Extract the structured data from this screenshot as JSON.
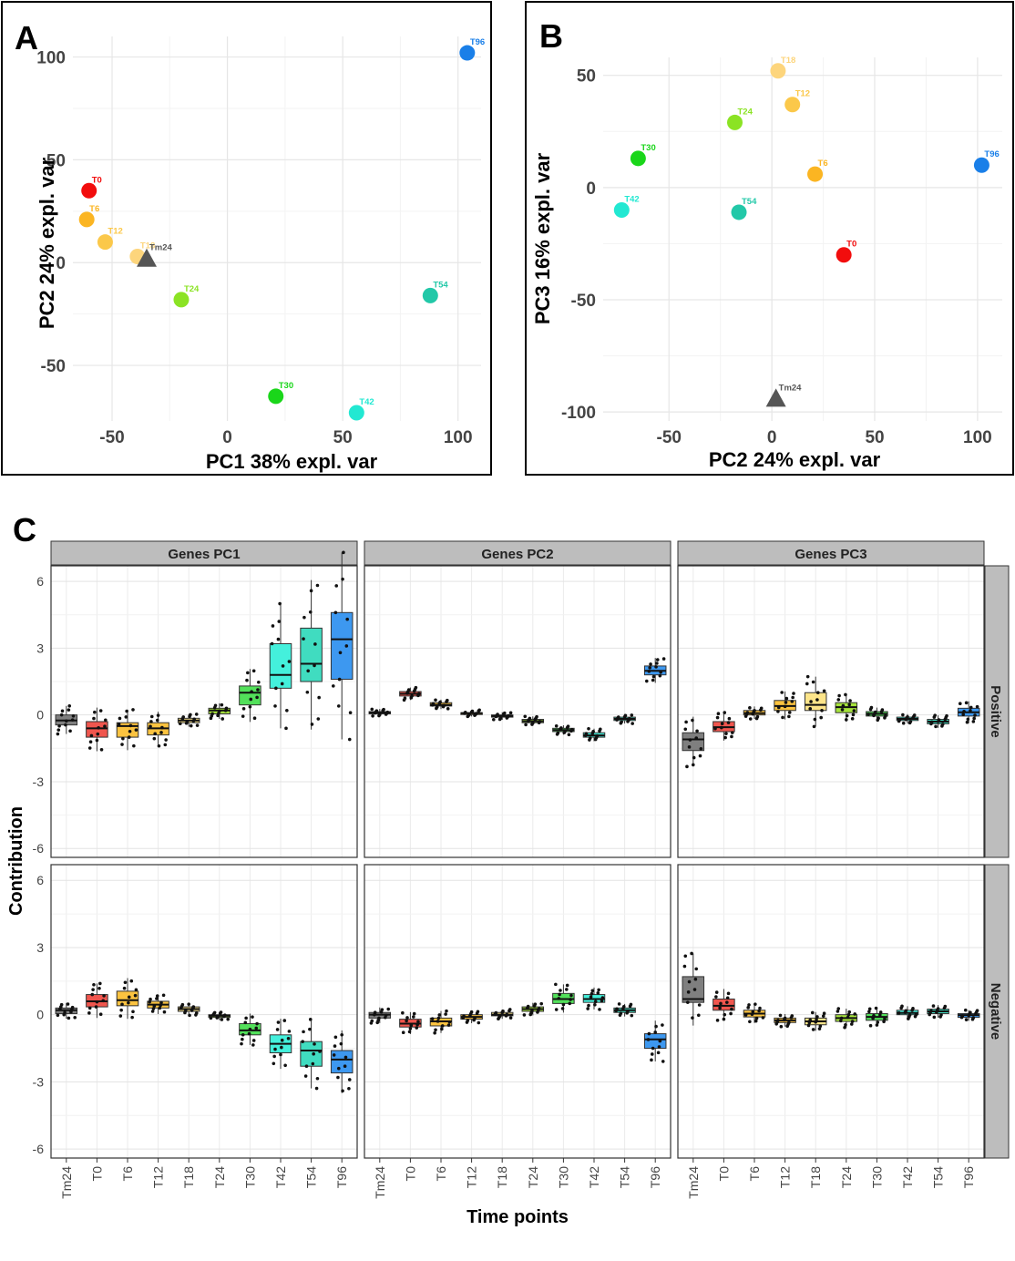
{
  "panels": {
    "a_letter": "A",
    "b_letter": "B",
    "c_letter": "C"
  },
  "chart_data": [
    {
      "id": "A",
      "type": "scatter",
      "xlabel": "PC1 38% expl. var",
      "ylabel": "PC2 24% expl. var",
      "xlim": [
        -67,
        110
      ],
      "ylim": [
        -77,
        110
      ],
      "xticks": [
        -50,
        0,
        50,
        100
      ],
      "yticks": [
        -50,
        0,
        50,
        100
      ],
      "grid": true,
      "points": [
        {
          "label": "T0",
          "x": -60,
          "y": 35,
          "color": "#f20d0d",
          "shape": "circle"
        },
        {
          "label": "T6",
          "x": -61,
          "y": 21,
          "color": "#fbb522",
          "shape": "circle"
        },
        {
          "label": "T12",
          "x": -53,
          "y": 10,
          "color": "#fbc84a",
          "shape": "circle"
        },
        {
          "label": "T18",
          "x": -39,
          "y": 3,
          "color": "#fdd57c",
          "shape": "circle"
        },
        {
          "label": "Tm24",
          "x": -35,
          "y": 2,
          "color": "#555555",
          "shape": "triangle"
        },
        {
          "label": "T24",
          "x": -20,
          "y": -18,
          "color": "#8be324",
          "shape": "circle"
        },
        {
          "label": "T30",
          "x": 21,
          "y": -65,
          "color": "#1ad61a",
          "shape": "circle"
        },
        {
          "label": "T42",
          "x": 56,
          "y": -73,
          "color": "#22e8d2",
          "shape": "circle"
        },
        {
          "label": "T54",
          "x": 88,
          "y": -16,
          "color": "#22c8a8",
          "shape": "circle"
        },
        {
          "label": "T96",
          "x": 104,
          "y": 102,
          "color": "#1a7fe8",
          "shape": "circle"
        }
      ]
    },
    {
      "id": "B",
      "type": "scatter",
      "xlabel": "PC2 24% expl. var",
      "ylabel": "PC3 16% expl. var",
      "xlim": [
        -82,
        112
      ],
      "ylim": [
        -104,
        58
      ],
      "xticks": [
        -50,
        0,
        50,
        100
      ],
      "yticks": [
        -100,
        -50,
        0,
        50
      ],
      "grid": true,
      "points": [
        {
          "label": "T18",
          "x": 3,
          "y": 52,
          "color": "#fdd57c",
          "shape": "circle"
        },
        {
          "label": "T12",
          "x": 10,
          "y": 37,
          "color": "#fbc84a",
          "shape": "circle"
        },
        {
          "label": "T24",
          "x": -18,
          "y": 29,
          "color": "#8be324",
          "shape": "circle"
        },
        {
          "label": "T30",
          "x": -65,
          "y": 13,
          "color": "#1ad61a",
          "shape": "circle"
        },
        {
          "label": "T6",
          "x": 21,
          "y": 6,
          "color": "#fbb522",
          "shape": "circle"
        },
        {
          "label": "T96",
          "x": 102,
          "y": 10,
          "color": "#1a7fe8",
          "shape": "circle"
        },
        {
          "label": "T42",
          "x": -73,
          "y": -10,
          "color": "#22e8d2",
          "shape": "circle"
        },
        {
          "label": "T54",
          "x": -16,
          "y": -11,
          "color": "#22c8a8",
          "shape": "circle"
        },
        {
          "label": "T0",
          "x": 35,
          "y": -30,
          "color": "#f20d0d",
          "shape": "circle"
        },
        {
          "label": "Tm24",
          "x": 2,
          "y": -94,
          "color": "#555555",
          "shape": "triangle"
        }
      ]
    },
    {
      "id": "C",
      "type": "box",
      "xlabel": "Time points",
      "ylabel": "Contribution",
      "ylim": [
        -6.4,
        6.7
      ],
      "yticks": [
        -6,
        -3,
        0,
        3,
        6
      ],
      "categories": [
        "Tm24",
        "T0",
        "T6",
        "T12",
        "T18",
        "T24",
        "T30",
        "T42",
        "T54",
        "T96"
      ],
      "colors": [
        "#7f7f7f",
        "#f0564e",
        "#fbc340",
        "#fbc340",
        "#fde58a",
        "#a6e33c",
        "#52e05a",
        "#44f0dc",
        "#40dcc0",
        "#3d98f0"
      ],
      "columns": [
        "Genes PC1",
        "Genes PC2",
        "Genes PC3"
      ],
      "rows": [
        "Positive",
        "Negative"
      ],
      "facets": [
        {
          "column": "Genes PC1",
          "row": "Positive",
          "boxes": [
            [
              -0.45,
              -0.25,
              0.0
            ],
            [
              -1.0,
              -0.6,
              -0.3
            ],
            [
              -1.0,
              -0.5,
              -0.35
            ],
            [
              -0.9,
              -0.6,
              -0.35
            ],
            [
              -0.35,
              -0.25,
              -0.15
            ],
            [
              0.05,
              0.2,
              0.3
            ],
            [
              0.45,
              1.0,
              1.3
            ],
            [
              1.2,
              1.8,
              3.2
            ],
            [
              1.5,
              2.3,
              3.9
            ],
            [
              1.6,
              3.4,
              4.6
            ]
          ]
        },
        {
          "column": "Genes PC1",
          "row": "Negative",
          "boxes": [
            [
              0.05,
              0.2,
              0.3
            ],
            [
              0.35,
              0.6,
              0.9
            ],
            [
              0.4,
              0.65,
              1.05
            ],
            [
              0.3,
              0.45,
              0.6
            ],
            [
              0.15,
              0.25,
              0.35
            ],
            [
              -0.12,
              -0.05,
              0.0
            ],
            [
              -0.9,
              -0.7,
              -0.4
            ],
            [
              -1.7,
              -1.3,
              -0.9
            ],
            [
              -2.3,
              -1.6,
              -1.2
            ],
            [
              -2.6,
              -2.0,
              -1.6
            ]
          ]
        },
        {
          "column": "Genes PC2",
          "row": "Positive",
          "boxes": [
            [
              0.05,
              0.1,
              0.15
            ],
            [
              0.85,
              0.95,
              1.05
            ],
            [
              0.4,
              0.45,
              0.55
            ],
            [
              0.05,
              0.08,
              0.1
            ],
            [
              -0.1,
              -0.05,
              0.0
            ],
            [
              -0.35,
              -0.28,
              -0.2
            ],
            [
              -0.75,
              -0.68,
              -0.6
            ],
            [
              -1.0,
              -0.92,
              -0.8
            ],
            [
              -0.25,
              -0.18,
              -0.1
            ],
            [
              1.8,
              1.98,
              2.2
            ]
          ]
        },
        {
          "column": "Genes PC2",
          "row": "Negative",
          "boxes": [
            [
              -0.15,
              0.0,
              0.1
            ],
            [
              -0.55,
              -0.4,
              -0.2
            ],
            [
              -0.5,
              -0.3,
              -0.15
            ],
            [
              -0.2,
              -0.1,
              0.0
            ],
            [
              -0.05,
              0.0,
              0.1
            ],
            [
              0.15,
              0.25,
              0.35
            ],
            [
              0.5,
              0.7,
              0.95
            ],
            [
              0.55,
              0.7,
              0.9
            ],
            [
              0.1,
              0.2,
              0.3
            ],
            [
              -1.5,
              -1.1,
              -0.85
            ]
          ]
        },
        {
          "column": "Genes PC3",
          "row": "Positive",
          "boxes": [
            [
              -1.6,
              -1.1,
              -0.8
            ],
            [
              -0.75,
              -0.55,
              -0.3
            ],
            [
              0.0,
              0.08,
              0.2
            ],
            [
              0.2,
              0.4,
              0.65
            ],
            [
              0.2,
              0.45,
              1.0
            ],
            [
              0.1,
              0.35,
              0.55
            ],
            [
              -0.05,
              0.05,
              0.15
            ],
            [
              -0.25,
              -0.18,
              -0.1
            ],
            [
              -0.4,
              -0.3,
              -0.2
            ],
            [
              -0.05,
              0.12,
              0.3
            ]
          ]
        },
        {
          "column": "Genes PC3",
          "row": "Negative",
          "boxes": [
            [
              0.55,
              0.7,
              1.7
            ],
            [
              0.2,
              0.4,
              0.7
            ],
            [
              -0.1,
              0.05,
              0.2
            ],
            [
              -0.35,
              -0.25,
              -0.15
            ],
            [
              -0.45,
              -0.3,
              -0.15
            ],
            [
              -0.3,
              -0.15,
              0.0
            ],
            [
              -0.25,
              -0.1,
              0.05
            ],
            [
              0.0,
              0.08,
              0.2
            ],
            [
              0.05,
              0.15,
              0.25
            ],
            [
              -0.12,
              -0.02,
              0.05
            ]
          ]
        }
      ]
    }
  ]
}
